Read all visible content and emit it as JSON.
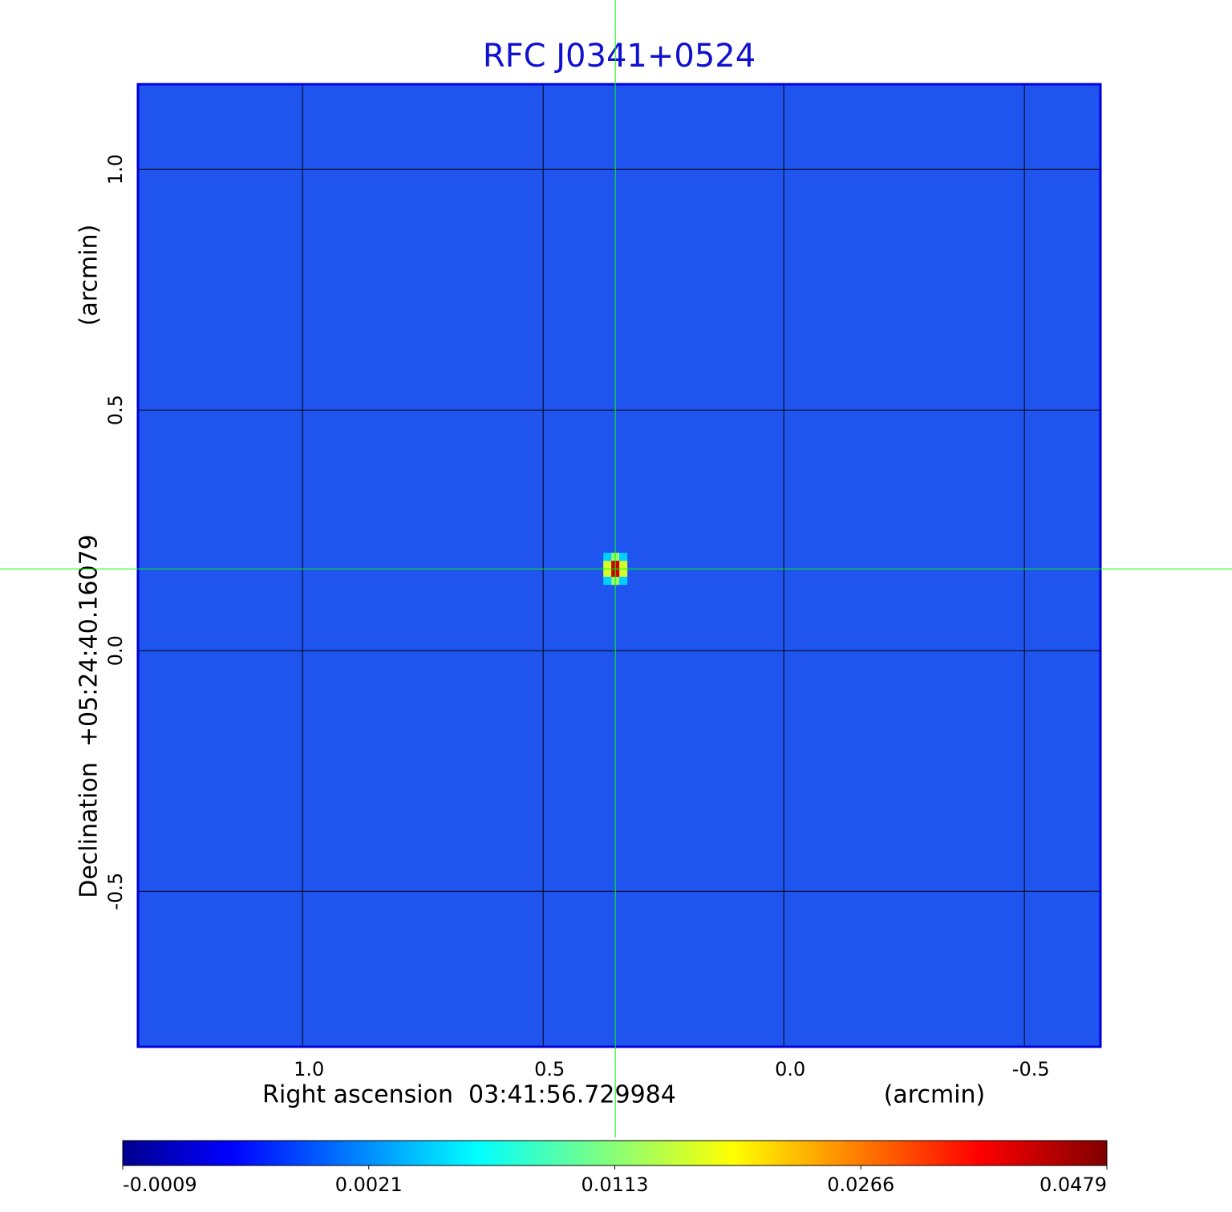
{
  "chart_data": {
    "type": "image",
    "title": "RFC J0341+0524",
    "title_color": "#1010d0",
    "x_label": "Right ascension  03:41:56.729984",
    "x_unit": "(arcmin)",
    "y_label": "Declination  +05:24:40.16079",
    "y_unit": "(arcmin)",
    "xlim": [
      1.342,
      -0.658
    ],
    "ylim": [
      -0.823,
      1.177
    ],
    "xticks": [
      {
        "value": 1,
        "label": "1.0"
      },
      0.5,
      {
        "value": 0,
        "label": "0.0"
      },
      -0.5
    ],
    "yticks": [
      {
        "value": 1,
        "label": "1.0"
      },
      0.5,
      {
        "value": 0,
        "label": "0.0"
      },
      -0.5
    ],
    "grid": true,
    "background_color": "#1f55ee",
    "frame_color": "#0000dd",
    "source": {
      "x": 0.35,
      "y": 0.17,
      "peak": 0.0479
    },
    "crosshair_color": "#00ff00",
    "colorbar": {
      "colormap": "jet",
      "ticks": [
        -0.0009,
        0.0021,
        0.0113,
        0.0266,
        0.0479
      ]
    }
  }
}
